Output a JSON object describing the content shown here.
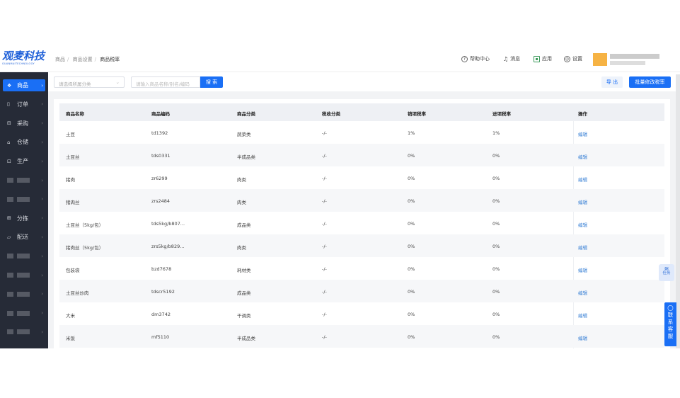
{
  "brand": {
    "logo_text": "观麦科技",
    "logo_sub": "GUANMAITECHNOLOGY"
  },
  "breadcrumb": [
    "商品",
    "商品设置",
    "商品税率"
  ],
  "top_nav": [
    {
      "icon": "help-circle-icon",
      "label": "帮助中心"
    },
    {
      "icon": "bell-icon",
      "label": "消息"
    },
    {
      "icon": "app-icon",
      "label": "应用"
    },
    {
      "icon": "gear-icon",
      "label": "设置"
    }
  ],
  "sidebar": {
    "items": [
      {
        "label": "商品",
        "icon": "product-icon",
        "active": true
      },
      {
        "label": "订单",
        "icon": "order-icon"
      },
      {
        "label": "采购",
        "icon": "purchase-icon"
      },
      {
        "label": "仓储",
        "icon": "warehouse-icon"
      },
      {
        "label": "生产",
        "icon": "production-icon"
      },
      {
        "label": "",
        "blurred": true
      },
      {
        "label": "",
        "blurred": true
      },
      {
        "label": "分拣",
        "icon": "sorting-icon"
      },
      {
        "label": "配送",
        "icon": "delivery-icon"
      },
      {
        "label": "",
        "blurred": true
      },
      {
        "label": "",
        "blurred": true
      },
      {
        "label": "",
        "blurred": true
      },
      {
        "label": "",
        "blurred": true
      },
      {
        "label": "",
        "blurred": true
      }
    ]
  },
  "toolbar": {
    "category_placeholder": "请选择所属分类",
    "search_placeholder": "请输入商品名称/别名/编码",
    "search_label": "搜 索",
    "export_label": "导 出",
    "batch_label": "批量修改税率"
  },
  "table": {
    "columns": [
      "商品名称",
      "商品编码",
      "商品分类",
      "税收分类",
      "销项税率",
      "进项税率",
      "操作"
    ],
    "rows": [
      [
        "土豆",
        "td1392",
        "蔬菜类",
        "-/-",
        "1%",
        "1%",
        "编辑"
      ],
      [
        "土豆丝",
        "tds0331",
        "半成品类",
        "-/-",
        "0%",
        "0%",
        "编辑"
      ],
      [
        "猪肉",
        "zr6299",
        "肉类",
        "-/-",
        "0%",
        "0%",
        "编辑"
      ],
      [
        "猪肉丝",
        "zrs2484",
        "肉类",
        "-/-",
        "0%",
        "0%",
        "编辑"
      ],
      [
        "土豆丝（5kg/包）",
        "tds5kg/b807...",
        "成品类",
        "-/-",
        "0%",
        "0%",
        "编辑"
      ],
      [
        "猪肉丝（5kg/包）",
        "zrs5kg/b829...",
        "肉类",
        "-/-",
        "0%",
        "0%",
        "编辑"
      ],
      [
        "包装袋",
        "bzd7678",
        "耗材类",
        "-/-",
        "0%",
        "0%",
        "编辑"
      ],
      [
        "土豆丝炒肉",
        "tdscr5192",
        "成品类",
        "-/-",
        "0%",
        "0%",
        "编辑"
      ],
      [
        "大米",
        "dm3742",
        "干调类",
        "-/-",
        "0%",
        "0%",
        "编辑"
      ],
      [
        "米饭",
        "mf5110",
        "半成品类",
        "-/-",
        "0%",
        "0%",
        "编辑"
      ]
    ]
  },
  "float": {
    "task_label": "任务",
    "contact_label": "联系客服"
  },
  "colors": {
    "primary": "#1a6ff5",
    "sidebar": "#262b37",
    "link": "#3b82d6"
  }
}
